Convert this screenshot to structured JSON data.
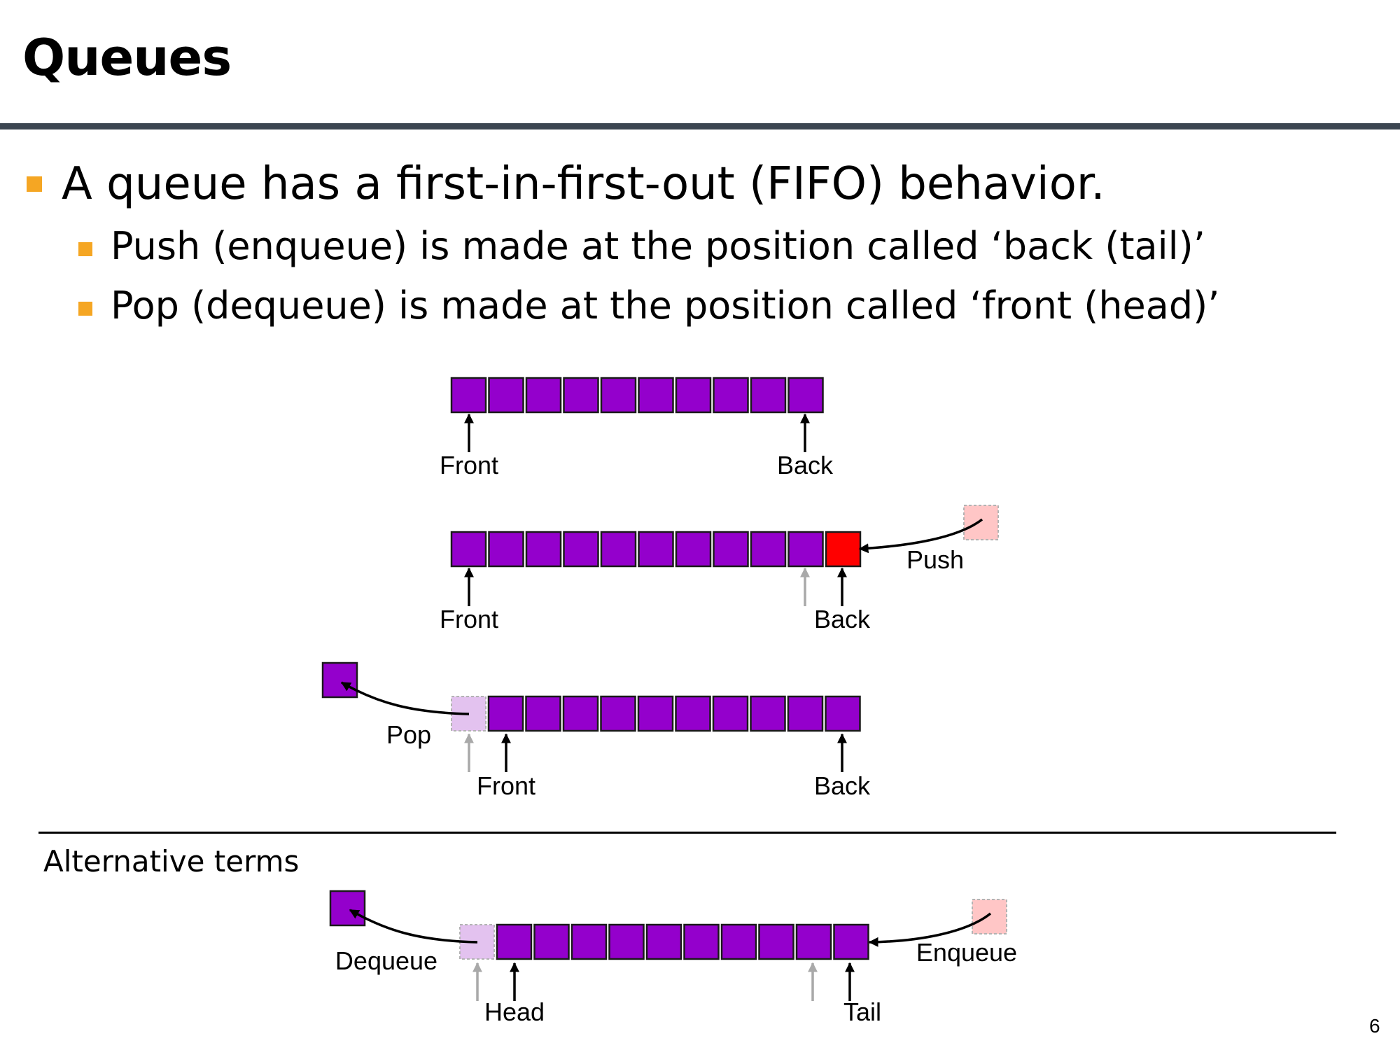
{
  "slide": {
    "title": "Queues",
    "bullets": [
      "A queue has a first-in-first-out (FIFO) behavior.",
      "Push (enqueue) is made at the position called ‘back (tail)’",
      "Pop (dequeue) is made at the position called ‘front (head)’"
    ],
    "alternative_heading": "Alternative terms",
    "page_number": "6"
  },
  "colors": {
    "element": "#9400cc",
    "pushed_element": "#ff0000",
    "incoming_element": "#ffc6c6",
    "removed_slot": "#e3c2ef",
    "bullet_marker": "#f5a623",
    "title_rule": "#3c4651",
    "old_pointer": "#a9a9a9"
  },
  "diagrams": {
    "initial": {
      "front_label": "Front",
      "back_label": "Back",
      "element_count": 10
    },
    "push": {
      "operation_label": "Push",
      "front_label": "Front",
      "back_label": "Back",
      "element_count": 11
    },
    "pop": {
      "operation_label": "Pop",
      "front_label": "Front",
      "back_label": "Back",
      "element_count": 10
    },
    "alternative": {
      "dequeue_label": "Dequeue",
      "enqueue_label": "Enqueue",
      "head_label": "Head",
      "tail_label": "Tail",
      "element_count": 10
    }
  }
}
